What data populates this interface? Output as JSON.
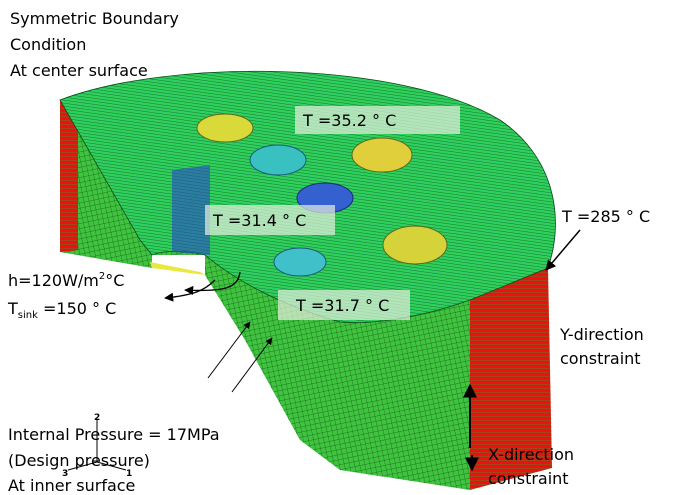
{
  "annotations": {
    "symmetric_boundary": [
      "Symmetric Boundary",
      "Condition",
      "At center surface"
    ],
    "temperatures": [
      "T =35.2 ° C",
      "T =31.4 ° C",
      "T =31.7 ° C",
      "T =285 ° C"
    ],
    "convection": {
      "h_text": "h=120W/m",
      "h_sup": "2",
      "h_unit": "°C",
      "t_main": "T",
      "t_sub": "sink",
      "t_rest": " =150 ° C"
    },
    "y_constraint": [
      "Y-direction",
      "constraint"
    ],
    "x_constraint": [
      "X-direction",
      "constraint"
    ],
    "pressure": [
      "Internal Pressure = 17MPa",
      "(Design pressure)",
      "At inner surface"
    ],
    "axes": [
      "2",
      "3",
      "1"
    ]
  }
}
